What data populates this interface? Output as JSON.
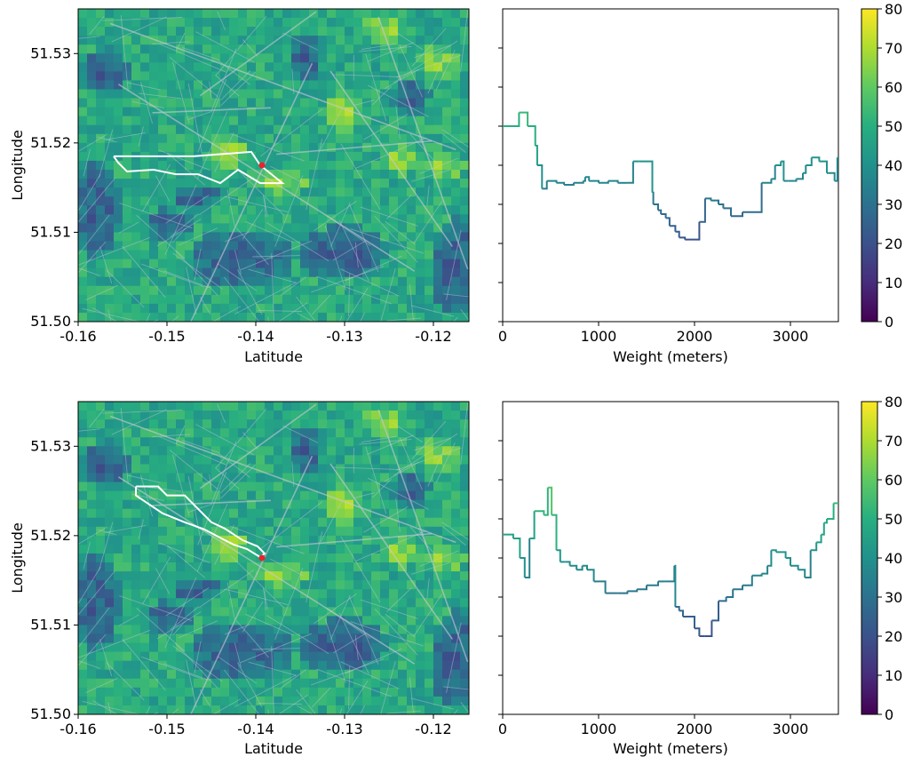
{
  "chart_data": [
    {
      "type": "heatmap",
      "panel": "map-top",
      "xlabel": "Latitude",
      "ylabel": "Longitude",
      "xlim": [
        -0.16,
        -0.116
      ],
      "ylim": [
        51.5,
        51.535
      ],
      "xticks": [
        "-0.16",
        "-0.15",
        "-0.14",
        "-0.13",
        "-0.12"
      ],
      "xtick_values": [
        -0.16,
        -0.15,
        -0.14,
        -0.13,
        -0.12
      ],
      "yticks": [
        "51.50",
        "51.51",
        "51.52",
        "51.53"
      ],
      "ytick_values": [
        51.5,
        51.51,
        51.52,
        51.53
      ],
      "route": [
        [
          -0.156,
          51.5185
        ],
        [
          -0.147,
          51.5185
        ],
        [
          -0.1405,
          51.519
        ],
        [
          -0.1395,
          51.5175
        ],
        [
          -0.137,
          51.5155
        ],
        [
          -0.1395,
          51.5155
        ],
        [
          -0.142,
          51.517
        ],
        [
          -0.144,
          51.5155
        ],
        [
          -0.1465,
          51.5165
        ],
        [
          -0.149,
          51.5165
        ],
        [
          -0.1515,
          51.517
        ],
        [
          -0.1545,
          51.5168
        ],
        [
          -0.1555,
          51.5178
        ],
        [
          -0.156,
          51.5185
        ]
      ],
      "marker": [
        -0.1393,
        51.5175
      ]
    },
    {
      "type": "line",
      "panel": "profile-top",
      "xlabel": "Weight (meters)",
      "ylabel": "",
      "xlim": [
        0,
        3500
      ],
      "ylim": [
        0,
        80
      ],
      "xticks": [
        "0",
        "1000",
        "2000",
        "3000"
      ],
      "xtick_values": [
        0,
        1000,
        2000,
        3000
      ],
      "yticks": [
        0,
        10,
        20,
        30,
        40,
        50,
        60,
        70
      ],
      "step": true,
      "series": [
        {
          "x": [
            0,
            170,
            260,
            340,
            360,
            410,
            460,
            560,
            640,
            740,
            840,
            860,
            900,
            1000,
            1100,
            1200,
            1300,
            1360,
            1420,
            1440,
            1560,
            1570,
            1620,
            1650,
            1700,
            1740,
            1800,
            1840,
            1900,
            2000,
            2050,
            2110,
            2170,
            2250,
            2300,
            2380,
            2500,
            2700,
            2800,
            2840,
            2900,
            2930,
            2980,
            3040,
            3060,
            3130,
            3160,
            3220,
            3300,
            3380,
            3460,
            3490,
            3500
          ],
          "y": [
            50,
            53.5,
            50,
            45,
            40,
            34,
            36,
            35.5,
            35,
            35.5,
            36,
            37,
            36,
            35.5,
            36,
            35.5,
            35.5,
            41,
            41,
            41,
            33,
            30,
            28.5,
            27.5,
            26.5,
            24.5,
            23,
            21.5,
            21,
            21,
            25.5,
            31.5,
            31,
            30,
            29,
            27,
            28,
            35.5,
            36.5,
            40,
            41,
            36,
            36,
            36,
            36.5,
            38,
            40,
            42,
            41,
            38,
            36,
            42,
            42
          ]
        }
      ]
    },
    {
      "type": "heatmap",
      "panel": "map-bottom",
      "xlabel": "Latitude",
      "ylabel": "Longitude",
      "xlim": [
        -0.16,
        -0.116
      ],
      "ylim": [
        51.5,
        51.535
      ],
      "xticks": [
        "-0.16",
        "-0.15",
        "-0.14",
        "-0.13",
        "-0.12"
      ],
      "xtick_values": [
        -0.16,
        -0.15,
        -0.14,
        -0.13,
        -0.12
      ],
      "yticks": [
        "51.50",
        "51.51",
        "51.52",
        "51.53"
      ],
      "ytick_values": [
        51.5,
        51.51,
        51.52,
        51.53
      ],
      "route": [
        [
          -0.1535,
          51.5255
        ],
        [
          -0.151,
          51.5255
        ],
        [
          -0.15,
          51.5245
        ],
        [
          -0.148,
          51.5245
        ],
        [
          -0.147,
          51.5235
        ],
        [
          -0.145,
          51.5215
        ],
        [
          -0.1435,
          51.5208
        ],
        [
          -0.1415,
          51.5195
        ],
        [
          -0.1398,
          51.5188
        ],
        [
          -0.139,
          51.518
        ],
        [
          -0.1395,
          51.5176
        ],
        [
          -0.141,
          51.5185
        ],
        [
          -0.1425,
          51.519
        ],
        [
          -0.1435,
          51.5195
        ],
        [
          -0.1458,
          51.5207
        ],
        [
          -0.148,
          51.5215
        ],
        [
          -0.1505,
          51.5225
        ],
        [
          -0.152,
          51.5235
        ],
        [
          -0.1535,
          51.5245
        ],
        [
          -0.1535,
          51.5255
        ]
      ],
      "marker": [
        -0.1393,
        51.5175
      ]
    },
    {
      "type": "line",
      "panel": "profile-bottom",
      "xlabel": "Weight (meters)",
      "ylabel": "",
      "xlim": [
        0,
        3500
      ],
      "ylim": [
        0,
        80
      ],
      "xticks": [
        "0",
        "1000",
        "2000",
        "3000"
      ],
      "xtick_values": [
        0,
        1000,
        2000,
        3000
      ],
      "yticks": [
        0,
        10,
        20,
        30,
        40,
        50,
        60,
        70
      ],
      "step": true,
      "series": [
        {
          "x": [
            0,
            110,
            180,
            230,
            280,
            330,
            430,
            470,
            510,
            560,
            600,
            650,
            700,
            770,
            830,
            880,
            950,
            1000,
            1070,
            1120,
            1200,
            1300,
            1400,
            1500,
            1620,
            1700,
            1790,
            1800,
            1840,
            1880,
            2000,
            2050,
            2110,
            2180,
            2250,
            2330,
            2400,
            2500,
            2560,
            2600,
            2700,
            2760,
            2800,
            2850,
            2950,
            3000,
            3080,
            3150,
            3210,
            3270,
            3320,
            3350,
            3380,
            3420,
            3450,
            3500
          ],
          "y": [
            46,
            45,
            40,
            35,
            45,
            52,
            51,
            58,
            51,
            42,
            39,
            39,
            38,
            37,
            38,
            37,
            34,
            34,
            31,
            31,
            31,
            31.5,
            32,
            33,
            34,
            34,
            38,
            27.5,
            26.5,
            25,
            22,
            20,
            20,
            24,
            29,
            30,
            32,
            33,
            33,
            35.5,
            36,
            38,
            42,
            41.5,
            40,
            38,
            37,
            35,
            42,
            44,
            46,
            49,
            50,
            50,
            54,
            54
          ]
        }
      ]
    }
  ],
  "colorbar": {
    "ticks": [
      "0",
      "10",
      "20",
      "30",
      "40",
      "50",
      "60",
      "70",
      "80"
    ],
    "tick_values": [
      0,
      10,
      20,
      30,
      40,
      50,
      60,
      70,
      80
    ],
    "range": [
      0,
      80
    ],
    "colormap": "viridis"
  },
  "colors": {
    "route": "#ffffff",
    "marker": "#e8242c",
    "roads": "#c9c9d6"
  }
}
